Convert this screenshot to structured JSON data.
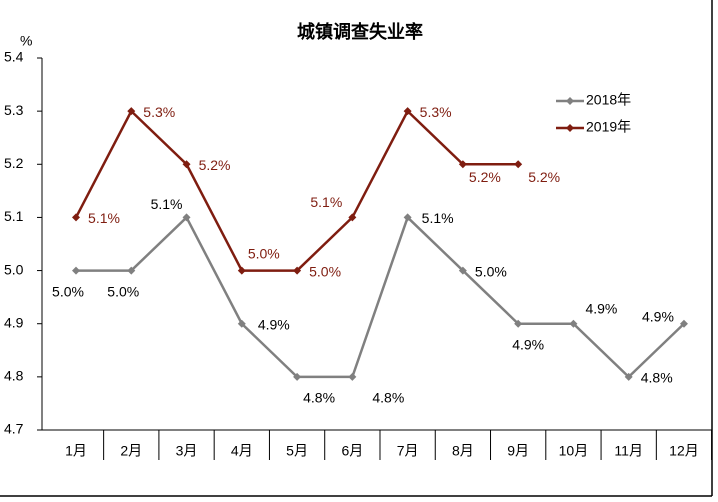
{
  "chart_data": {
    "type": "line",
    "title": "城镇调查失业率",
    "ylabel": "%",
    "categories": [
      "1月",
      "2月",
      "3月",
      "4月",
      "5月",
      "6月",
      "7月",
      "8月",
      "9月",
      "10月",
      "11月",
      "12月"
    ],
    "series": [
      {
        "name": "2018年",
        "color": "#808080",
        "values": [
          5.0,
          5.0,
          5.1,
          4.9,
          4.8,
          4.8,
          5.1,
          5.0,
          4.9,
          4.9,
          4.8,
          4.9
        ],
        "value_labels": [
          "5.0%",
          "5.0%",
          "5.1%",
          "4.9%",
          "4.8%",
          "4.8%",
          "5.1%",
          "5.0%",
          "4.9%",
          "4.9%",
          "4.8%",
          "4.9%"
        ]
      },
      {
        "name": "2019年",
        "color": "#7f1d10",
        "values": [
          5.1,
          5.3,
          5.2,
          5.0,
          5.0,
          5.1,
          5.3,
          5.2,
          5.2,
          null,
          null,
          null
        ],
        "value_labels": [
          "5.1%",
          "5.3%",
          "5.2%",
          "5.0%",
          "5.0%",
          "5.1%",
          "5.3%",
          "5.2%",
          "5.2%",
          null,
          null,
          null
        ]
      }
    ],
    "ylim": [
      4.7,
      5.4
    ],
    "yticks": [
      4.7,
      4.8,
      4.9,
      {
        "value": 5.0,
        "label": "5.0"
      },
      5.1,
      5.2,
      5.3,
      5.4
    ],
    "legend": "upper right"
  }
}
